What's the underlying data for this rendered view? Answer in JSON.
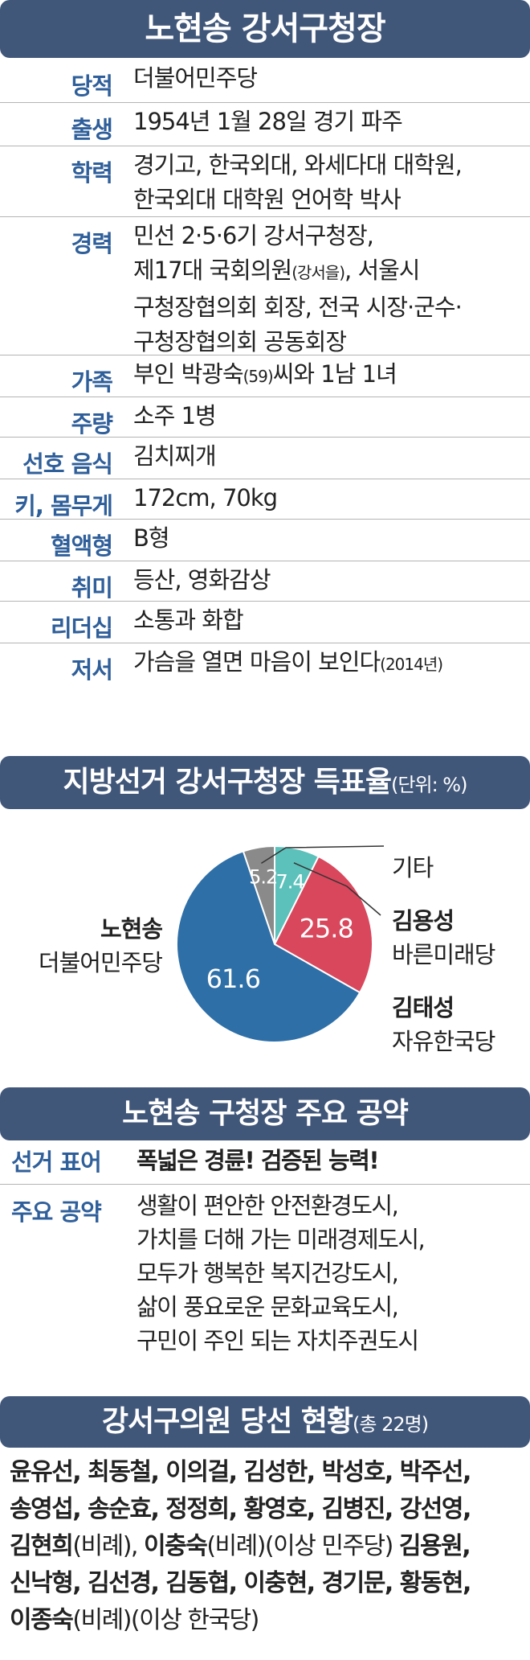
{
  "profile": {
    "title": "노현송 강서구청장",
    "rows": [
      {
        "label": "당적",
        "lines": [
          "더불어민주당"
        ]
      },
      {
        "label": "출생",
        "lines": [
          "1954년 1월 28일 경기 파주"
        ]
      },
      {
        "label": "학력",
        "lines": [
          "경기고, 한국외대, 와세다대 대학원,",
          "한국외대 대학원 언어학 박사"
        ]
      },
      {
        "label": "경력",
        "lines": [
          "민선 2·5·6기 강서구청장,",
          "제17대 국회의원(강서을), 서울시",
          "구청장협의회 회장, 전국 시장·군수·",
          "구청장협의회 공동회장"
        ]
      },
      {
        "label": "가족",
        "lines": [
          "부인 박광숙(59)씨와 1남 1녀"
        ]
      },
      {
        "label": "주량",
        "lines": [
          "소주 1병"
        ]
      },
      {
        "label": "선호 음식",
        "lines": [
          "김치찌개"
        ]
      },
      {
        "label": "키, 몸무게",
        "lines": [
          "172cm, 70kg"
        ]
      },
      {
        "label": "혈액형",
        "lines": [
          "B형"
        ]
      },
      {
        "label": "취미",
        "lines": [
          "등산, 영화감상"
        ]
      },
      {
        "label": "리더십",
        "lines": [
          "소통과 화합"
        ]
      },
      {
        "label": "저서",
        "lines": [
          "가슴을 열면 마음이 보인다(2014년)"
        ]
      }
    ]
  },
  "election": {
    "title": "지방선거 강서구청장 득표율",
    "unit": "(단위: %)"
  },
  "chart_data": {
    "type": "pie",
    "title": "지방선거 강서구청장 득표율",
    "unit": "%",
    "slices": [
      {
        "name": "노현송",
        "party": "더불어민주당",
        "value": 61.6,
        "color": "#2e6fa7"
      },
      {
        "name": "김태성",
        "party": "자유한국당",
        "value": 25.8,
        "color": "#d8475c"
      },
      {
        "name": "김용성",
        "party": "바른미래당",
        "value": 7.4,
        "color": "#5cc1bb"
      },
      {
        "name": "기타",
        "party": "",
        "value": 5.2,
        "color": "#8a8a8a"
      }
    ]
  },
  "promises": {
    "title": "노현송 구청장 주요 공약",
    "slogan_label": "선거 표어",
    "slogan": "폭넓은 경륜! 검증된 능력!",
    "pledges_label": "주요 공약",
    "pledges": [
      "생활이 편안한 안전환경도시,",
      "가치를 더해 가는 미래경제도시,",
      "모두가 행복한 복지건강도시,",
      "삶이 풍요로운 문화교육도시,",
      "구민이 주인 되는 자치주권도시"
    ]
  },
  "council": {
    "title": "강서구의원 당선 현황",
    "total": "(총 22명)",
    "lines": [
      [
        {
          "t": "윤유선, 최동철, 이의걸, 김성한, 박성호, 박주선,",
          "b": true
        }
      ],
      [
        {
          "t": "송영섭, 송순효, 정정희, 황영호, 김병진, 강선영,",
          "b": true
        }
      ],
      [
        {
          "t": "김현희",
          "b": true
        },
        {
          "t": "(비례), ",
          "b": false
        },
        {
          "t": "이충숙",
          "b": true
        },
        {
          "t": "(비례)(이상 민주당) ",
          "b": false
        },
        {
          "t": "김용원,",
          "b": true
        }
      ],
      [
        {
          "t": "신낙형, 김선경, 김동협, 이충현, 경기문, 황동현,",
          "b": true
        }
      ],
      [
        {
          "t": "이종숙",
          "b": true
        },
        {
          "t": "(비례)(이상 한국당)",
          "b": false
        }
      ]
    ]
  }
}
